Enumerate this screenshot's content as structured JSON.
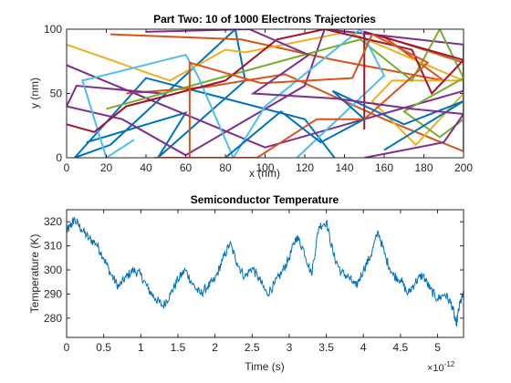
{
  "chart_data": [
    {
      "type": "line",
      "title": "Part Two: 10 of 1000 Electrons Trajectories",
      "xlabel": "x (nm)",
      "ylabel": "y (nm)",
      "xlim": [
        0,
        200
      ],
      "ylim": [
        0,
        100
      ],
      "xticks": [
        0,
        20,
        40,
        60,
        80,
        100,
        120,
        140,
        160,
        180,
        200
      ],
      "yticks": [
        0,
        50,
        100
      ],
      "grid": false,
      "legend": "none",
      "colors": [
        "#0072bd",
        "#d95319",
        "#edb120",
        "#7e2f8e",
        "#77ac30",
        "#4dbeee",
        "#a2142f"
      ],
      "series": [
        {
          "color": "#0072bd",
          "points": [
            [
              10,
              12
            ],
            [
              60,
              35
            ],
            [
              46,
              0
            ],
            [
              90,
              60
            ],
            [
              85,
              100
            ],
            [
              22,
              10
            ],
            [
              4,
              0
            ],
            [
              40,
              62
            ],
            [
              120,
              30
            ],
            [
              135,
              0
            ]
          ]
        },
        {
          "color": "#d95319",
          "points": [
            [
              22,
              96
            ],
            [
              88,
              92
            ],
            [
              135,
              76
            ],
            [
              190,
              60
            ],
            [
              160,
              94
            ],
            [
              200,
              74
            ],
            [
              200,
              5
            ],
            [
              160,
              30
            ],
            [
              110,
              65
            ],
            [
              70,
              55
            ],
            [
              30,
              50
            ]
          ]
        },
        {
          "color": "#edb120",
          "points": [
            [
              0,
              88
            ],
            [
              52,
              60
            ],
            [
              80,
              84
            ],
            [
              90,
              82
            ],
            [
              142,
              98
            ],
            [
              200,
              60
            ],
            [
              164,
              60
            ],
            [
              154,
              44
            ],
            [
              176,
              10
            ],
            [
              200,
              50
            ]
          ]
        },
        {
          "color": "#7e2f8e",
          "points": [
            [
              0,
              72
            ],
            [
              100,
              8
            ],
            [
              200,
              52
            ],
            [
              200,
              88
            ],
            [
              130,
              100
            ],
            [
              120,
              56
            ],
            [
              60,
              2
            ],
            [
              28,
              30
            ],
            [
              0,
              40
            ],
            [
              5,
              56
            ],
            [
              48,
              50
            ]
          ]
        },
        {
          "color": "#77ac30",
          "points": [
            [
              20,
              38
            ],
            [
              148,
              92
            ],
            [
              174,
              60
            ],
            [
              188,
              100
            ],
            [
              200,
              62
            ],
            [
              170,
              36
            ],
            [
              188,
              16
            ],
            [
              200,
              30
            ]
          ]
        },
        {
          "color": "#4dbeee",
          "points": [
            [
              116,
              0
            ],
            [
              160,
              64
            ],
            [
              148,
              100
            ],
            [
              100,
              40
            ],
            [
              84,
              0
            ],
            [
              66,
              64
            ],
            [
              60,
              80
            ],
            [
              8,
              60
            ],
            [
              20,
              0
            ],
            [
              34,
              14
            ]
          ]
        },
        {
          "color": "#a2142f",
          "points": [
            [
              150,
              22
            ],
            [
              150,
              98
            ],
            [
              200,
              76
            ],
            [
              184,
              50
            ],
            [
              174,
              84
            ],
            [
              130,
              100
            ],
            [
              106,
              92
            ],
            [
              80,
              60
            ],
            [
              30,
              40
            ],
            [
              14,
              20
            ],
            [
              0,
              26
            ]
          ]
        },
        {
          "color": "#d95319",
          "points": [
            [
              62,
              0
            ],
            [
              62,
              74
            ],
            [
              98,
              58
            ],
            [
              144,
              62
            ],
            [
              154,
              96
            ],
            [
              182,
              74
            ],
            [
              150,
              30
            ],
            [
              126,
              30
            ],
            [
              96,
              0
            ],
            [
              44,
              0
            ]
          ]
        },
        {
          "color": "#0072bd",
          "points": [
            [
              160,
              6
            ],
            [
              200,
              44
            ],
            [
              170,
              26
            ],
            [
              134,
              52
            ],
            [
              150,
              30
            ],
            [
              128,
              12
            ],
            [
              108,
              36
            ],
            [
              80,
              0
            ]
          ]
        },
        {
          "color": "#7e2f8e",
          "points": [
            [
              40,
              98
            ],
            [
              92,
              100
            ],
            [
              122,
              80
            ],
            [
              94,
              50
            ],
            [
              136,
              46
            ],
            [
              174,
              38
            ],
            [
              200,
              34
            ],
            [
              190,
              12
            ],
            [
              150,
              0
            ]
          ]
        }
      ]
    },
    {
      "type": "line",
      "title": "Semiconductor Temperature",
      "xlabel": "Time (s)",
      "ylabel": "Temperature (K)",
      "x_multiplier": "×10",
      "x_exponent": "-12",
      "xlim": [
        0,
        5.35
      ],
      "ylim": [
        272,
        325
      ],
      "xticks": [
        0,
        0.5,
        1,
        1.5,
        2,
        2.5,
        3,
        3.5,
        4,
        4.5,
        5
      ],
      "xticklabels": [
        "0",
        "0.5",
        "1",
        "1.5",
        "2",
        "2.5",
        "3",
        "3.5",
        "4",
        "4.5",
        "5"
      ],
      "yticks": [
        280,
        290,
        300,
        310,
        320
      ],
      "grid": false,
      "legend": "none",
      "series": [
        {
          "color": "#0072bd",
          "x": [
            0,
            0.05,
            0.1,
            0.2,
            0.3,
            0.4,
            0.5,
            0.6,
            0.7,
            0.8,
            0.9,
            1.0,
            1.1,
            1.2,
            1.3,
            1.4,
            1.5,
            1.6,
            1.7,
            1.8,
            1.9,
            2.0,
            2.1,
            2.2,
            2.3,
            2.4,
            2.5,
            2.6,
            2.7,
            2.8,
            2.9,
            3.0,
            3.1,
            3.2,
            3.3,
            3.4,
            3.5,
            3.6,
            3.7,
            3.8,
            3.9,
            4.0,
            4.1,
            4.2,
            4.3,
            4.4,
            4.5,
            4.6,
            4.7,
            4.8,
            4.9,
            5.0,
            5.1,
            5.2,
            5.25,
            5.3,
            5.35
          ],
          "values": [
            316,
            318,
            321,
            317,
            313,
            311,
            305,
            298,
            293,
            297,
            300,
            298,
            292,
            288,
            285,
            290,
            296,
            300,
            294,
            290,
            293,
            296,
            304,
            311,
            303,
            297,
            301,
            296,
            290,
            294,
            299,
            305,
            314,
            308,
            298,
            318,
            320,
            306,
            299,
            297,
            293,
            300,
            306,
            316,
            305,
            298,
            296,
            290,
            295,
            298,
            292,
            288,
            290,
            285,
            277,
            286,
            290
          ]
        }
      ]
    }
  ]
}
